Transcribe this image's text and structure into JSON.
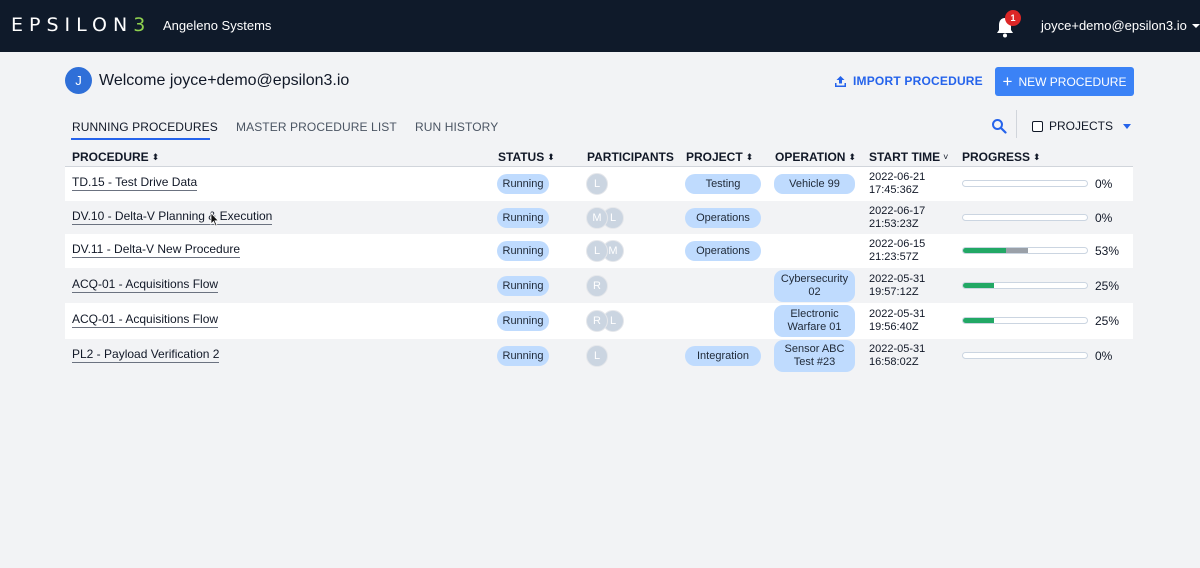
{
  "topbar": {
    "logo_text": "EPSILON",
    "logo_mark": "3",
    "org_name": "Angeleno Systems",
    "notification_count": "1",
    "user_email": "joyce+demo@epsilon3.io",
    "bell_icon": "bell-icon"
  },
  "header": {
    "avatar_initial": "J",
    "welcome": "Welcome joyce+demo@epsilon3.io",
    "import_label": "IMPORT PROCEDURE",
    "new_label": "NEW PROCEDURE",
    "accent_color": "#3b82f6"
  },
  "tabs": [
    {
      "label": "RUNNING PROCEDURES",
      "active": true
    },
    {
      "label": "MASTER PROCEDURE LIST",
      "active": false
    },
    {
      "label": "RUN HISTORY",
      "active": false
    }
  ],
  "filter": {
    "projects_label": "PROJECTS"
  },
  "table": {
    "columns": [
      "PROCEDURE",
      "STATUS",
      "PARTICIPANTS",
      "PROJECT",
      "OPERATION",
      "START TIME",
      "PROGRESS"
    ],
    "rows": [
      {
        "procedure": "TD.15 - Test Drive Data",
        "status": "Running",
        "participants": [
          "L"
        ],
        "project": "Testing",
        "operation": "Vehicle 99",
        "start_date": "2022-06-21",
        "start_time": "17:45:36Z",
        "progress_done": 0,
        "progress_other": 0,
        "progress_label": "0%"
      },
      {
        "procedure": "DV.10 - Delta-V Planning & Execution",
        "status": "Running",
        "participants": [
          "M",
          "L"
        ],
        "project": "Operations",
        "operation": "",
        "start_date": "2022-06-17",
        "start_time": "21:53:23Z",
        "progress_done": 0,
        "progress_other": 0,
        "progress_label": "0%"
      },
      {
        "procedure": "DV.11 - Delta-V New Procedure",
        "status": "Running",
        "participants": [
          "L",
          "M"
        ],
        "project": "Operations",
        "operation": "",
        "start_date": "2022-06-15",
        "start_time": "21:23:57Z",
        "progress_done": 0.35,
        "progress_other": 0.18,
        "progress_label": "53%"
      },
      {
        "procedure": "ACQ-01 - Acquisitions Flow",
        "status": "Running",
        "participants": [
          "R"
        ],
        "project": "",
        "operation": "Cybersecurity 02",
        "start_date": "2022-05-31",
        "start_time": "19:57:12Z",
        "progress_done": 0.25,
        "progress_other": 0,
        "progress_label": "25%"
      },
      {
        "procedure": "ACQ-01 - Acquisitions Flow",
        "status": "Running",
        "participants": [
          "R",
          "L"
        ],
        "project": "",
        "operation": "Electronic Warfare 01",
        "start_date": "2022-05-31",
        "start_time": "19:56:40Z",
        "progress_done": 0.25,
        "progress_other": 0,
        "progress_label": "25%"
      },
      {
        "procedure": "PL2 - Payload Verification 2",
        "status": "Running",
        "participants": [
          "L"
        ],
        "project": "Integration",
        "operation": "Sensor ABC Test #23",
        "start_date": "2022-05-31",
        "start_time": "16:58:02Z",
        "progress_done": 0,
        "progress_other": 0,
        "progress_label": "0%"
      }
    ]
  },
  "colors": {
    "topbar": "#0f1a2a",
    "pill": "#bfdbfe",
    "progress_complete": "#22a865",
    "progress_other": "#9aa0a8"
  }
}
